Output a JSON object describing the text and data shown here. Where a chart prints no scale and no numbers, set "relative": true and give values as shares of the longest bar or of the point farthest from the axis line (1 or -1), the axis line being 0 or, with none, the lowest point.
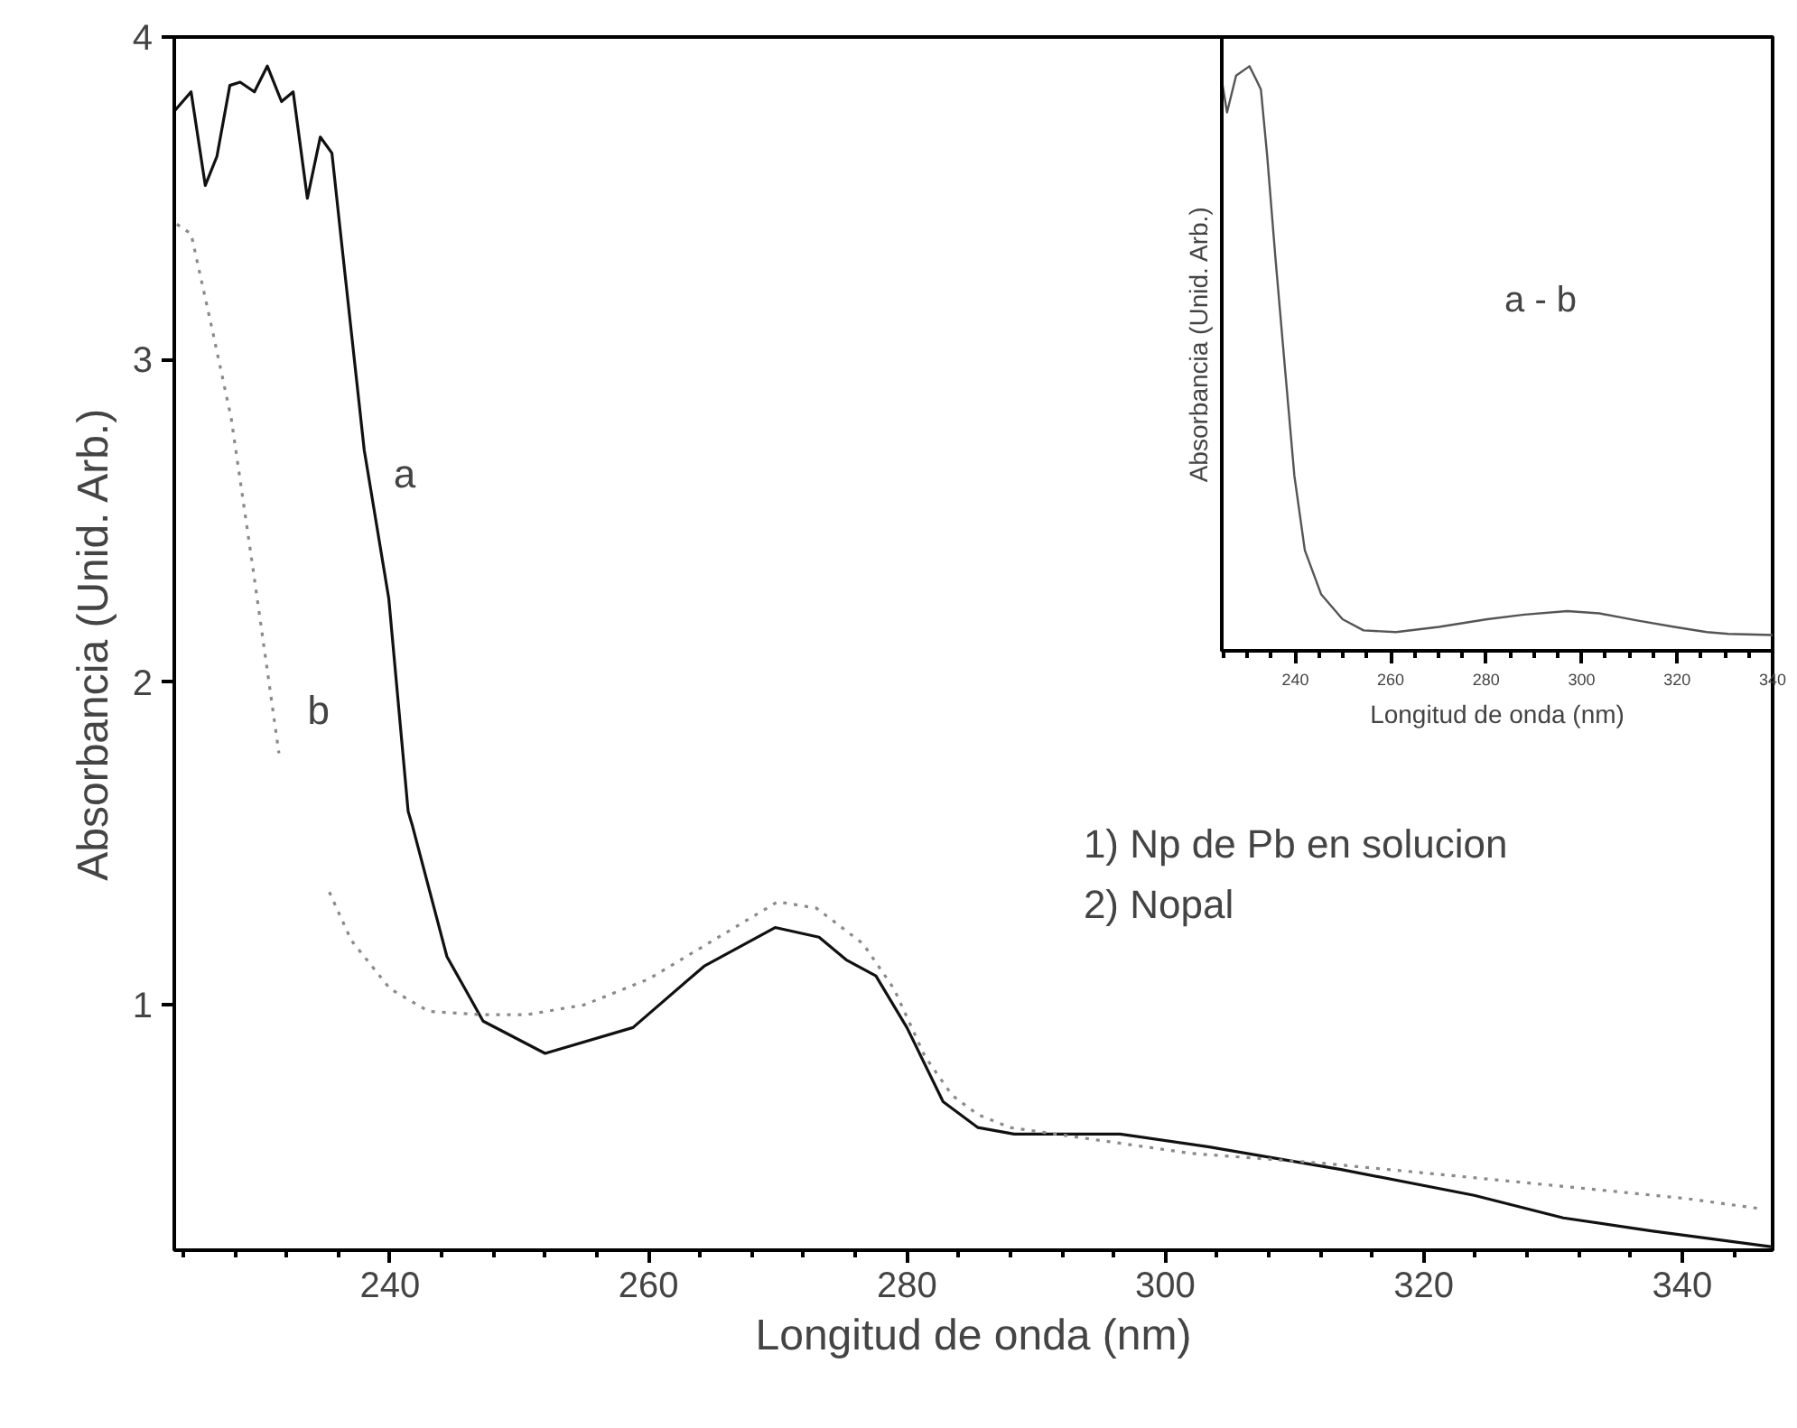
{
  "chart_data": [
    {
      "type": "line",
      "xlabel": "Longitud de onda (nm)",
      "ylabel": "Absorbancia (Unid. Arb.)",
      "xlim": [
        223.3,
        347
      ],
      "ylim": [
        0.24,
        4.0
      ],
      "xticks": [
        240,
        260,
        280,
        300,
        320,
        340
      ],
      "yticks": [
        1,
        2,
        3,
        4
      ],
      "grid": false,
      "series": [
        {
          "color": "#111111",
          "line_style": "solid",
          "x": [
            223.3,
            224.6,
            225.7,
            226.6,
            227.6,
            228.4,
            229.5,
            230.5,
            231.6,
            232.5,
            233.6,
            234.6,
            235.5,
            236.2,
            238.0,
            239.9,
            241.4,
            241.7,
            244.4,
            247.2,
            252.0,
            258.8,
            264.3,
            269.8,
            273.2,
            275.3,
            277.6,
            280.0,
            282.8,
            285.5,
            288.3,
            296.5,
            303.4,
            313.6,
            323.9,
            330.8,
            337.6,
            347.0
          ],
          "values": [
            3.77,
            3.83,
            3.54,
            3.63,
            3.85,
            3.86,
            3.83,
            3.91,
            3.8,
            3.83,
            3.5,
            3.69,
            3.64,
            3.38,
            2.72,
            2.26,
            1.6,
            1.56,
            1.15,
            0.95,
            0.85,
            0.93,
            1.12,
            1.24,
            1.21,
            1.14,
            1.09,
            0.93,
            0.7,
            0.62,
            0.6,
            0.6,
            0.56,
            0.49,
            0.41,
            0.34,
            0.3,
            0.25
          ]
        },
        {
          "color": "#8a8a8a",
          "line_style": "dotted",
          "x": [
            223.5,
            224.6,
            226.2,
            227.7,
            229.4,
            231.4,
            233.0,
            235.3,
            237.0,
            240.0,
            243.0,
            247.0,
            250.6,
            255.0,
            260.0,
            265.0,
            270.0,
            273.0,
            276.6,
            279.0,
            281.4,
            283.5,
            285.5,
            288.0,
            295.0,
            302.0,
            312.0,
            322.5,
            332.8,
            340.3,
            345.8
          ],
          "values": [
            3.42,
            3.39,
            3.1,
            2.82,
            2.35,
            1.78,
            null,
            1.35,
            1.2,
            1.05,
            0.98,
            0.97,
            0.97,
            1.0,
            1.08,
            1.2,
            1.32,
            1.3,
            1.19,
            1.05,
            0.84,
            0.72,
            0.66,
            0.62,
            0.58,
            0.54,
            0.51,
            0.47,
            0.43,
            0.4,
            0.37
          ]
        }
      ],
      "annotations": [
        "a",
        "b",
        "1) Np de Pb en solucion",
        "2) Nopal"
      ]
    },
    {
      "type": "line",
      "xlabel": "Longitud de onda (nm)",
      "ylabel": "Absorbancia (Unid. Arb.)",
      "relative": true,
      "xlim": [
        224.6,
        340
      ],
      "xticks": [
        240,
        260,
        280,
        300,
        320,
        340
      ],
      "grid": false,
      "series": [
        {
          "color": "#555555",
          "x": [
            224.6,
            225.7,
            227.6,
            230.4,
            231.7,
            232.8,
            234.1,
            235.8,
            237.5,
            239.8,
            242.0,
            245.4,
            249.9,
            254.3,
            261.1,
            270.1,
            280.2,
            288.0,
            297.0,
            303.7,
            311.6,
            319.4,
            326.2,
            330.7,
            340.0
          ],
          "values": [
            0.976,
            0.921,
            0.984,
            1,
            0.979,
            0.96,
            0.848,
            0.676,
            0.515,
            0.3,
            0.172,
            0.097,
            0.054,
            0.035,
            0.032,
            0.041,
            0.054,
            0.062,
            0.068,
            0.064,
            0.052,
            0.041,
            0.032,
            0.029,
            0.027
          ]
        }
      ],
      "annotations": [
        "a - b"
      ]
    }
  ]
}
